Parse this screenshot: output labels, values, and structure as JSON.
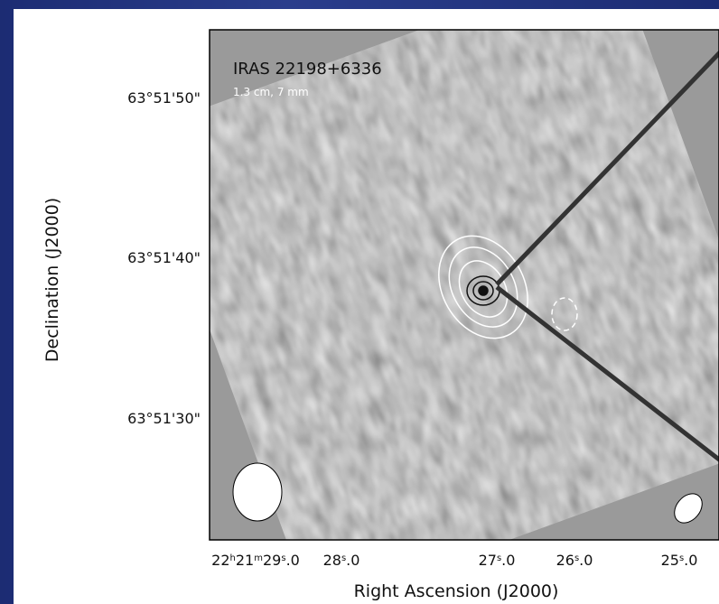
{
  "figure": {
    "source": "IRAS 22198+6336",
    "bands": "1.3 cm, 7 mm",
    "x_axis_title": "Right Ascension (J2000)",
    "y_axis_title": "Declination (J2000)",
    "y_ticks": [
      "63°51'50\"",
      "63°51'40\"",
      "63°51'30\""
    ],
    "x_ticks": [
      [
        "22",
        "h",
        "21",
        "m",
        "29",
        "s",
        ".0"
      ],
      [
        "28",
        "s",
        ".0"
      ],
      [
        "27",
        "s",
        ".0"
      ],
      [
        "26",
        "s",
        ".0"
      ],
      [
        "25",
        "s",
        ".0"
      ]
    ]
  }
}
